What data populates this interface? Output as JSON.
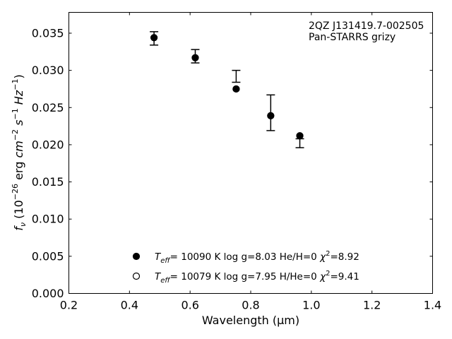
{
  "chart_data": {
    "type": "scatter",
    "title": "",
    "xlabel": "Wavelength (μm)",
    "ylabel": "f_ν (10^-26 erg cm^-2 s^-1 Hz^-1)",
    "xlim": [
      0.2,
      1.4
    ],
    "ylim": [
      0.0,
      0.0378
    ],
    "x_ticks": [
      0.2,
      0.4,
      0.6,
      0.8,
      1.0,
      1.2,
      1.4
    ],
    "x_tick_labels": [
      "0.2",
      "0.4",
      "0.6",
      "0.8",
      "1.0",
      "1.2",
      "1.4"
    ],
    "y_ticks": [
      0.0,
      0.005,
      0.01,
      0.015,
      0.02,
      0.025,
      0.03,
      0.035
    ],
    "y_tick_labels": [
      "0.000",
      "0.005",
      "0.010",
      "0.015",
      "0.020",
      "0.025",
      "0.030",
      "0.035"
    ],
    "grid": false,
    "legend_position": "bottom-center",
    "annotation": {
      "line1": "2QZ J131419.7-002505",
      "line2": "Pan-STARRS grizy"
    },
    "observed": {
      "x": [
        0.481,
        0.617,
        0.752,
        0.866,
        0.962
      ],
      "y": [
        0.0343,
        0.0319,
        0.0292,
        0.0243,
        0.0202
      ],
      "yerr": [
        0.0009,
        0.0009,
        0.0008,
        0.0024,
        0.0006
      ]
    },
    "series": [
      {
        "name": "Teff= 10090 K  log g=8.03  He/H=0  χ2=8.92",
        "marker": "filled",
        "x": [
          0.481,
          0.617,
          0.752,
          0.866,
          0.962
        ],
        "y": [
          0.0344,
          0.0317,
          0.0275,
          0.0239,
          0.0212
        ]
      },
      {
        "name": "Teff= 10079 K  log g=7.95  H/He=0  χ2=9.41",
        "marker": "open",
        "x": [
          0.481,
          0.617,
          0.752,
          0.866,
          0.962
        ],
        "y": [
          0.0344,
          0.0317,
          0.0275,
          0.0239,
          0.0212
        ]
      }
    ],
    "legend": [
      {
        "marker": "filled",
        "teff": "10090 K",
        "logg": "log g=8.03",
        "comp": "He/H=0",
        "chi2": "8.92"
      },
      {
        "marker": "open",
        "teff": "10079 K",
        "logg": "log g=7.95",
        "comp": "H/He=0",
        "chi2": "9.41"
      }
    ]
  }
}
